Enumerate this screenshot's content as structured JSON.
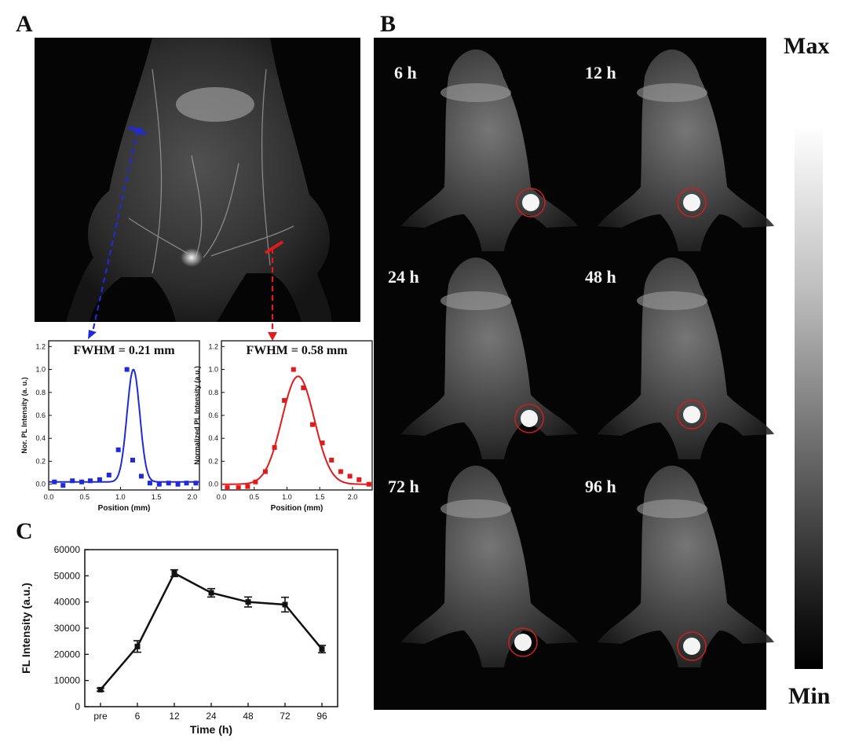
{
  "panels": {
    "a": "A",
    "b": "B",
    "c": "C"
  },
  "colorbar": {
    "max": "Max",
    "min": "Min"
  },
  "time_points": [
    "6 h",
    "12 h",
    "24 h",
    "48 h",
    "72 h",
    "96 h"
  ],
  "chart_data": [
    {
      "id": "fwhm-blue",
      "type": "scatter",
      "title": "FWHM = 0.21 mm",
      "xlabel": "Position (mm)",
      "ylabel": "Nor. PL Intensity (a. u.)",
      "xlim": [
        0,
        2.1
      ],
      "ylim": [
        -0.05,
        1.25
      ],
      "xticks": [
        "0.0",
        "0.5",
        "1.0",
        "1.5",
        "2.0"
      ],
      "yticks": [
        "0.0",
        "0.2",
        "0.4",
        "0.6",
        "0.8",
        "1.0",
        "1.2"
      ],
      "color": "#1f2bd6",
      "series": [
        {
          "name": "measured",
          "x": [
            0.08,
            0.2,
            0.33,
            0.46,
            0.58,
            0.71,
            0.84,
            0.97,
            1.09,
            1.17,
            1.29,
            1.41,
            1.54,
            1.67,
            1.8,
            1.92,
            2.05
          ],
          "y": [
            0.02,
            -0.01,
            0.03,
            0.02,
            0.03,
            0.04,
            0.08,
            0.3,
            1.0,
            0.21,
            0.07,
            0.01,
            0.0,
            0.01,
            0.0,
            0.01,
            0.01
          ]
        },
        {
          "name": "fit",
          "center": 1.18,
          "fwhm": 0.21,
          "amplitude": 0.98,
          "offset": 0.02
        }
      ]
    },
    {
      "id": "fwhm-red",
      "type": "scatter",
      "title": "FWHM = 0.58 mm",
      "xlabel": "Position (mm)",
      "ylabel": "Normalized PL Intensity (a.u.)",
      "xlim": [
        0,
        2.3
      ],
      "ylim": [
        -0.05,
        1.25
      ],
      "xticks": [
        "0.0",
        "0.5",
        "1.0",
        "1.5",
        "2.0"
      ],
      "yticks": [
        "0.0",
        "0.2",
        "0.4",
        "0.6",
        "0.8",
        "1.0",
        "1.2"
      ],
      "color": "#e21a1a",
      "series": [
        {
          "name": "measured",
          "x": [
            0.09,
            0.26,
            0.4,
            0.52,
            0.67,
            0.81,
            0.96,
            1.1,
            1.25,
            1.39,
            1.54,
            1.68,
            1.82,
            1.96,
            2.1,
            2.25
          ],
          "y": [
            -0.03,
            -0.03,
            -0.02,
            0.02,
            0.11,
            0.32,
            0.73,
            1.0,
            0.84,
            0.52,
            0.36,
            0.21,
            0.11,
            0.07,
            0.04,
            0.0
          ]
        },
        {
          "name": "fit",
          "center": 1.17,
          "fwhm": 0.58,
          "amplitude": 0.94,
          "offset": 0.0
        }
      ]
    },
    {
      "id": "fl-intensity",
      "type": "line",
      "title": "",
      "xlabel": "Time (h)",
      "ylabel": "FL Intensity (a.u.)",
      "categories": [
        "pre",
        "6",
        "12",
        "24",
        "48",
        "72",
        "96"
      ],
      "values": [
        6500,
        23000,
        51000,
        43500,
        40000,
        39000,
        22000
      ],
      "errors": [
        600,
        2200,
        1300,
        1600,
        1900,
        2800,
        1400
      ],
      "ylim": [
        0,
        60000
      ],
      "yticks": [
        "0",
        "10000",
        "20000",
        "30000",
        "40000",
        "50000",
        "60000"
      ]
    }
  ]
}
